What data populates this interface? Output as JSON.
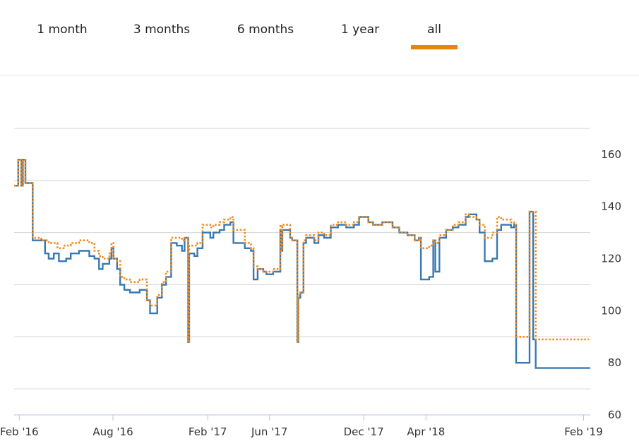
{
  "tabs": [
    {
      "label": "1 month",
      "active": false
    },
    {
      "label": "3 months",
      "active": false
    },
    {
      "label": "6 months",
      "active": false
    },
    {
      "label": "1 year",
      "active": false
    },
    {
      "label": "all",
      "active": true
    }
  ],
  "colors": {
    "series_a": "#3a78b0",
    "series_b": "#f08c1e",
    "active_tab": "#e8840c",
    "grid": "#d6d6d6"
  },
  "chart_data": {
    "type": "line",
    "title": "",
    "xlabel": "",
    "ylabel": "",
    "y_axis_side": "right",
    "ylim": [
      60,
      170
    ],
    "ytick_labels": [
      "60",
      "80",
      "100",
      "120",
      "140",
      "160"
    ],
    "xlim": [
      "2016-01-22",
      "2019-02-14"
    ],
    "xtick_labels": [
      "Feb '16",
      "Aug '16",
      "Feb '17",
      "Jun '17",
      "Dec '17",
      "Apr '18",
      "Feb '19"
    ],
    "xtick_dates": [
      "2016-02-01",
      "2016-08-01",
      "2017-02-01",
      "2017-06-01",
      "2017-12-01",
      "2018-04-01",
      "2019-02-01"
    ],
    "grid": true,
    "legend": "none",
    "series": [
      {
        "style": "solid",
        "color": "#3a78b0",
        "points": [
          [
            "2016-01-22",
            148
          ],
          [
            "2016-01-30",
            158
          ],
          [
            "2016-02-05",
            148
          ],
          [
            "2016-02-08",
            158
          ],
          [
            "2016-02-13",
            149
          ],
          [
            "2016-02-27",
            127
          ],
          [
            "2016-03-22",
            122
          ],
          [
            "2016-03-29",
            120
          ],
          [
            "2016-04-08",
            122
          ],
          [
            "2016-04-18",
            119
          ],
          [
            "2016-05-02",
            120
          ],
          [
            "2016-05-11",
            122
          ],
          [
            "2016-05-27",
            123
          ],
          [
            "2016-06-16",
            121
          ],
          [
            "2016-06-26",
            120
          ],
          [
            "2016-07-05",
            116
          ],
          [
            "2016-07-12",
            118
          ],
          [
            "2016-07-25",
            120
          ],
          [
            "2016-07-29",
            124
          ],
          [
            "2016-08-02",
            120
          ],
          [
            "2016-08-09",
            116
          ],
          [
            "2016-08-15",
            110
          ],
          [
            "2016-08-23",
            108
          ],
          [
            "2016-09-03",
            107
          ],
          [
            "2016-09-22",
            108
          ],
          [
            "2016-10-06",
            104
          ],
          [
            "2016-10-12",
            99
          ],
          [
            "2016-10-26",
            105
          ],
          [
            "2016-11-04",
            110
          ],
          [
            "2016-11-12",
            113
          ],
          [
            "2016-11-22",
            126
          ],
          [
            "2016-12-03",
            125
          ],
          [
            "2016-12-13",
            123
          ],
          [
            "2016-12-18",
            128
          ],
          [
            "2016-12-25",
            88
          ],
          [
            "2016-12-27",
            122
          ],
          [
            "2017-01-06",
            121
          ],
          [
            "2017-01-12",
            124
          ],
          [
            "2017-01-22",
            130
          ],
          [
            "2017-02-06",
            128
          ],
          [
            "2017-02-12",
            130
          ],
          [
            "2017-02-24",
            131
          ],
          [
            "2017-03-05",
            133
          ],
          [
            "2017-03-17",
            134
          ],
          [
            "2017-03-23",
            126
          ],
          [
            "2017-04-14",
            124
          ],
          [
            "2017-04-26",
            123
          ],
          [
            "2017-05-01",
            112
          ],
          [
            "2017-05-09",
            116
          ],
          [
            "2017-05-20",
            115
          ],
          [
            "2017-05-26",
            114
          ],
          [
            "2017-06-08",
            115
          ],
          [
            "2017-06-22",
            131
          ],
          [
            "2017-06-24",
            123
          ],
          [
            "2017-06-26",
            131
          ],
          [
            "2017-07-11",
            128
          ],
          [
            "2017-07-15",
            127
          ],
          [
            "2017-07-21",
            127
          ],
          [
            "2017-07-25",
            88
          ],
          [
            "2017-07-27",
            105
          ],
          [
            "2017-07-31",
            107
          ],
          [
            "2017-08-06",
            126
          ],
          [
            "2017-08-11",
            128
          ],
          [
            "2017-08-27",
            126
          ],
          [
            "2017-09-04",
            129
          ],
          [
            "2017-09-15",
            128
          ],
          [
            "2017-09-28",
            132
          ],
          [
            "2017-10-12",
            133
          ],
          [
            "2017-10-28",
            132
          ],
          [
            "2017-11-12",
            133
          ],
          [
            "2017-11-22",
            136
          ],
          [
            "2017-12-10",
            134
          ],
          [
            "2017-12-19",
            133
          ],
          [
            "2018-01-06",
            134
          ],
          [
            "2018-01-26",
            132
          ],
          [
            "2018-02-08",
            130
          ],
          [
            "2018-02-24",
            129
          ],
          [
            "2018-03-10",
            127
          ],
          [
            "2018-03-18",
            128
          ],
          [
            "2018-03-22",
            112
          ],
          [
            "2018-04-07",
            113
          ],
          [
            "2018-04-15",
            127
          ],
          [
            "2018-04-19",
            115
          ],
          [
            "2018-04-27",
            128
          ],
          [
            "2018-05-10",
            131
          ],
          [
            "2018-05-23",
            132
          ],
          [
            "2018-06-03",
            133
          ],
          [
            "2018-06-17",
            136
          ],
          [
            "2018-06-23",
            137
          ],
          [
            "2018-07-08",
            135
          ],
          [
            "2018-07-14",
            130
          ],
          [
            "2018-07-24",
            119
          ],
          [
            "2018-08-08",
            120
          ],
          [
            "2018-08-17",
            131
          ],
          [
            "2018-08-25",
            133
          ],
          [
            "2018-09-13",
            132
          ],
          [
            "2018-09-19",
            133
          ],
          [
            "2018-09-23",
            80
          ],
          [
            "2018-10-15",
            80
          ],
          [
            "2018-10-19",
            138
          ],
          [
            "2018-10-26",
            89
          ],
          [
            "2018-10-31",
            78
          ]
        ]
      },
      {
        "style": "dotted",
        "color": "#f08c1e",
        "points": [
          [
            "2016-01-22",
            148
          ],
          [
            "2016-01-30",
            158
          ],
          [
            "2016-02-05",
            148
          ],
          [
            "2016-02-08",
            158
          ],
          [
            "2016-02-13",
            149
          ],
          [
            "2016-02-27",
            128
          ],
          [
            "2016-03-15",
            127
          ],
          [
            "2016-03-29",
            126
          ],
          [
            "2016-04-15",
            124
          ],
          [
            "2016-04-29",
            125
          ],
          [
            "2016-05-11",
            126
          ],
          [
            "2016-05-27",
            127
          ],
          [
            "2016-06-16",
            126
          ],
          [
            "2016-06-26",
            123
          ],
          [
            "2016-07-05",
            121
          ],
          [
            "2016-07-12",
            120
          ],
          [
            "2016-07-25",
            122
          ],
          [
            "2016-07-29",
            126
          ],
          [
            "2016-08-02",
            120
          ],
          [
            "2016-08-09",
            119
          ],
          [
            "2016-08-15",
            113
          ],
          [
            "2016-08-23",
            112
          ],
          [
            "2016-09-03",
            111
          ],
          [
            "2016-09-22",
            112
          ],
          [
            "2016-10-06",
            104
          ],
          [
            "2016-10-12",
            102
          ],
          [
            "2016-10-26",
            106
          ],
          [
            "2016-11-04",
            111
          ],
          [
            "2016-11-12",
            115
          ],
          [
            "2016-11-22",
            128
          ],
          [
            "2016-12-13",
            127
          ],
          [
            "2016-12-18",
            128
          ],
          [
            "2016-12-25",
            88
          ],
          [
            "2016-12-27",
            125
          ],
          [
            "2017-01-06",
            125
          ],
          [
            "2017-01-12",
            126
          ],
          [
            "2017-01-22",
            133
          ],
          [
            "2017-02-06",
            132
          ],
          [
            "2017-02-12",
            133
          ],
          [
            "2017-02-24",
            134
          ],
          [
            "2017-03-05",
            135
          ],
          [
            "2017-03-17",
            136
          ],
          [
            "2017-03-23",
            131
          ],
          [
            "2017-04-14",
            126
          ],
          [
            "2017-04-26",
            124
          ],
          [
            "2017-05-01",
            117
          ],
          [
            "2017-05-09",
            116
          ],
          [
            "2017-05-20",
            115
          ],
          [
            "2017-05-26",
            115
          ],
          [
            "2017-06-08",
            116
          ],
          [
            "2017-06-22",
            133
          ],
          [
            "2017-06-24",
            123
          ],
          [
            "2017-06-26",
            133
          ],
          [
            "2017-07-11",
            128
          ],
          [
            "2017-07-15",
            127
          ],
          [
            "2017-07-21",
            127
          ],
          [
            "2017-07-25",
            88
          ],
          [
            "2017-07-27",
            106
          ],
          [
            "2017-07-31",
            107
          ],
          [
            "2017-08-06",
            127
          ],
          [
            "2017-08-11",
            129
          ],
          [
            "2017-08-27",
            127
          ],
          [
            "2017-09-04",
            130
          ],
          [
            "2017-09-15",
            129
          ],
          [
            "2017-09-28",
            133
          ],
          [
            "2017-10-12",
            134
          ],
          [
            "2017-10-28",
            133
          ],
          [
            "2017-11-12",
            134
          ],
          [
            "2017-11-22",
            136
          ],
          [
            "2017-12-10",
            134
          ],
          [
            "2017-12-19",
            133
          ],
          [
            "2018-01-06",
            134
          ],
          [
            "2018-01-26",
            132
          ],
          [
            "2018-02-08",
            130
          ],
          [
            "2018-02-24",
            129
          ],
          [
            "2018-03-10",
            127
          ],
          [
            "2018-03-18",
            128
          ],
          [
            "2018-03-22",
            124
          ],
          [
            "2018-04-07",
            125
          ],
          [
            "2018-04-15",
            127
          ],
          [
            "2018-04-19",
            126
          ],
          [
            "2018-04-27",
            129
          ],
          [
            "2018-05-10",
            131
          ],
          [
            "2018-05-23",
            133
          ],
          [
            "2018-06-03",
            134
          ],
          [
            "2018-06-17",
            137
          ],
          [
            "2018-06-23",
            136
          ],
          [
            "2018-07-08",
            135
          ],
          [
            "2018-07-14",
            133
          ],
          [
            "2018-07-24",
            128
          ],
          [
            "2018-08-08",
            130
          ],
          [
            "2018-08-17",
            136
          ],
          [
            "2018-08-25",
            135
          ],
          [
            "2018-09-13",
            134
          ],
          [
            "2018-09-19",
            133
          ],
          [
            "2018-09-23",
            90
          ],
          [
            "2018-10-15",
            90
          ],
          [
            "2018-10-19",
            138
          ],
          [
            "2018-10-26",
            138
          ],
          [
            "2018-10-31",
            89
          ]
        ]
      }
    ]
  }
}
